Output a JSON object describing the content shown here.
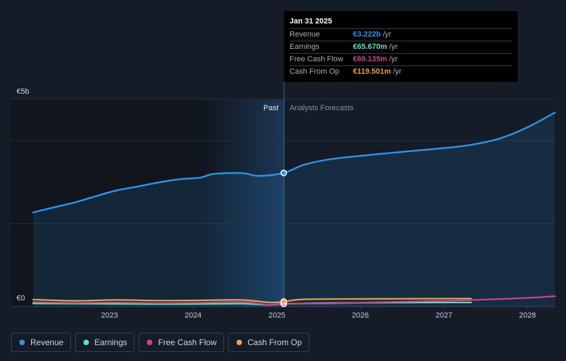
{
  "chart_data": {
    "type": "line",
    "y_axis": {
      "top_label": "€5b",
      "bottom_label": "€0",
      "ylim": [
        0,
        5000
      ]
    },
    "x_ticks": [
      "2023",
      "2024",
      "2025",
      "2026",
      "2027",
      "2028"
    ],
    "xlim": [
      "2022-02-01",
      "2028-04-30"
    ],
    "divider_date": "2025-01-31",
    "past_label": "Past",
    "forecast_label": "Analysts Forecasts",
    "grid": true,
    "series": [
      {
        "name": "Revenue",
        "color": "#2e93e6",
        "fill": true,
        "points": [
          [
            "2022-02-01",
            2270
          ],
          [
            "2022-05-01",
            2390
          ],
          [
            "2022-08-01",
            2510
          ],
          [
            "2022-11-01",
            2660
          ],
          [
            "2023-02-01",
            2800
          ],
          [
            "2023-05-01",
            2890
          ],
          [
            "2023-08-01",
            2990
          ],
          [
            "2023-11-01",
            3070
          ],
          [
            "2024-02-01",
            3110
          ],
          [
            "2024-04-01",
            3200
          ],
          [
            "2024-08-01",
            3220
          ],
          [
            "2024-10-15",
            3150
          ],
          [
            "2025-01-31",
            3222
          ],
          [
            "2025-04-30",
            3420
          ],
          [
            "2025-08-31",
            3560
          ],
          [
            "2026-01-31",
            3650
          ],
          [
            "2026-06-30",
            3730
          ],
          [
            "2026-12-31",
            3820
          ],
          [
            "2027-04-30",
            3900
          ],
          [
            "2027-08-31",
            4050
          ],
          [
            "2027-12-31",
            4320
          ],
          [
            "2028-04-30",
            4680
          ]
        ]
      },
      {
        "name": "Earnings",
        "color": "#58e1c6",
        "points": [
          [
            "2022-02-01",
            75
          ],
          [
            "2022-08-01",
            70
          ],
          [
            "2023-02-01",
            65
          ],
          [
            "2023-08-01",
            60
          ],
          [
            "2024-02-01",
            62
          ],
          [
            "2024-08-01",
            70
          ],
          [
            "2024-11-30",
            40
          ],
          [
            "2025-01-31",
            65.67
          ],
          [
            "2025-08-31",
            85
          ],
          [
            "2026-04-30",
            95
          ],
          [
            "2027-04-30",
            100
          ]
        ]
      },
      {
        "name": "Free Cash Flow",
        "color": "#c9478a",
        "points": [
          [
            "2022-02-01",
            110
          ],
          [
            "2022-08-01",
            90
          ],
          [
            "2023-02-01",
            100
          ],
          [
            "2023-08-01",
            85
          ],
          [
            "2024-02-01",
            95
          ],
          [
            "2024-08-01",
            110
          ],
          [
            "2024-11-30",
            40
          ],
          [
            "2025-01-31",
            69.135
          ],
          [
            "2025-08-31",
            75
          ],
          [
            "2026-04-30",
            110
          ],
          [
            "2026-12-31",
            140
          ],
          [
            "2027-06-30",
            170
          ],
          [
            "2027-12-31",
            210
          ],
          [
            "2028-04-30",
            250
          ]
        ]
      },
      {
        "name": "Cash From Op",
        "color": "#eaa34a",
        "points": [
          [
            "2022-02-01",
            170
          ],
          [
            "2022-08-01",
            140
          ],
          [
            "2023-02-01",
            160
          ],
          [
            "2023-08-01",
            145
          ],
          [
            "2024-02-01",
            150
          ],
          [
            "2024-08-01",
            160
          ],
          [
            "2024-11-30",
            100
          ],
          [
            "2025-01-31",
            119.501
          ],
          [
            "2025-04-30",
            175
          ],
          [
            "2025-12-31",
            185
          ],
          [
            "2026-08-31",
            190
          ],
          [
            "2027-04-30",
            195
          ]
        ]
      }
    ]
  },
  "tooltip": {
    "date": "Jan 31 2025",
    "rows": [
      {
        "label": "Revenue",
        "value": "€3.222b",
        "unit": "/yr",
        "color": "#2e93e6"
      },
      {
        "label": "Earnings",
        "value": "€65.670m",
        "unit": "/yr",
        "color": "#58e1c6"
      },
      {
        "label": "Free Cash Flow",
        "value": "€69.135m",
        "unit": "/yr",
        "color": "#c9478a"
      },
      {
        "label": "Cash From Op",
        "value": "€119.501m",
        "unit": "/yr",
        "color": "#eaa34a"
      }
    ]
  },
  "legend": [
    {
      "label": "Revenue",
      "color": "#2e93e6"
    },
    {
      "label": "Earnings",
      "color": "#58e1c6"
    },
    {
      "label": "Free Cash Flow",
      "color": "#c9478a"
    },
    {
      "label": "Cash From Op",
      "color": "#eaa34a"
    }
  ]
}
